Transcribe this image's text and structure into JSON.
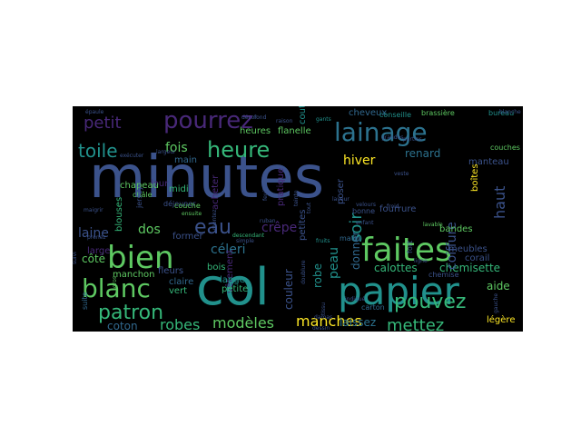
{
  "colors": {
    "background": "#000000",
    "palette": [
      "#440154",
      "#3b528b",
      "#21918c",
      "#5ec962",
      "#fde725",
      "#31688e",
      "#35b779",
      "#482878"
    ]
  },
  "words": [
    {
      "text": "minutes",
      "color": "#3b528b"
    },
    {
      "text": "col",
      "color": "#21918c"
    },
    {
      "text": "faites",
      "color": "#5ec962"
    },
    {
      "text": "papier",
      "color": "#21918c"
    },
    {
      "text": "lainage",
      "color": "#2c728e"
    },
    {
      "text": "pourrez",
      "color": "#482878"
    },
    {
      "text": "heure",
      "color": "#35b779"
    },
    {
      "text": "bien",
      "color": "#5ec962"
    },
    {
      "text": "blanc",
      "color": "#5ec962"
    },
    {
      "text": "patron",
      "color": "#35b779"
    },
    {
      "text": "eau",
      "color": "#3b528b"
    },
    {
      "text": "pouvez",
      "color": "#35b779"
    },
    {
      "text": "toile",
      "color": "#21918c"
    },
    {
      "text": "petit",
      "color": "#482878"
    },
    {
      "text": "soir",
      "color": "#21918c"
    },
    {
      "text": "mettez",
      "color": "#35b779"
    },
    {
      "text": "manches",
      "color": "#fde725"
    },
    {
      "text": "modèles",
      "color": "#5ec962"
    },
    {
      "text": "robes",
      "color": "#35b779"
    },
    {
      "text": "hiver",
      "color": "#fde725"
    },
    {
      "text": "fois",
      "color": "#5ec962"
    },
    {
      "text": "haut",
      "color": "#3b528b"
    },
    {
      "text": "laine",
      "color": "#3b528b"
    },
    {
      "text": "dos",
      "color": "#5ec962"
    },
    {
      "text": "crêpe",
      "color": "#482878"
    },
    {
      "text": "céleri",
      "color": "#2c728e"
    },
    {
      "text": "peau",
      "color": "#21918c"
    },
    {
      "text": "renard",
      "color": "#2c728e"
    },
    {
      "text": "coton",
      "color": "#31688e"
    },
    {
      "text": "côté",
      "color": "#5ec962"
    },
    {
      "text": "calottes",
      "color": "#35b779"
    },
    {
      "text": "chemisette",
      "color": "#35b779"
    },
    {
      "text": "coiffure",
      "color": "#3b528b"
    },
    {
      "text": "couleur",
      "color": "#3b528b"
    },
    {
      "text": "donner",
      "color": "#31688e"
    },
    {
      "text": "laissez",
      "color": "#2c728e"
    },
    {
      "text": "aide",
      "color": "#5ec962"
    },
    {
      "text": "manteau",
      "color": "#3b528b"
    },
    {
      "text": "fourrure",
      "color": "#3b528b"
    },
    {
      "text": "robe",
      "color": "#21918c"
    },
    {
      "text": "blouses",
      "color": "#35b779"
    },
    {
      "text": "flanelle",
      "color": "#5ec962"
    },
    {
      "text": "heures",
      "color": "#5ec962"
    },
    {
      "text": "vêtement",
      "color": "#482878"
    },
    {
      "text": "légère",
      "color": "#fde725"
    },
    {
      "text": "fleurs",
      "color": "#3b528b"
    },
    {
      "text": "manchon",
      "color": "#5ec962"
    },
    {
      "text": "fruits",
      "color": "#21918c"
    },
    {
      "text": "bois",
      "color": "#35b779"
    },
    {
      "text": "lange",
      "color": "#21918c"
    },
    {
      "text": "petite",
      "color": "#35b779"
    },
    {
      "text": "vert",
      "color": "#35b779"
    },
    {
      "text": "claire",
      "color": "#31688e"
    },
    {
      "text": "bandes",
      "color": "#5ec962"
    },
    {
      "text": "meubles",
      "color": "#3b528b"
    },
    {
      "text": "corail",
      "color": "#3b528b"
    },
    {
      "text": "cheveux",
      "color": "#31688e"
    },
    {
      "text": "brassière",
      "color": "#5ec962"
    },
    {
      "text": "bureau",
      "color": "#21918c"
    },
    {
      "text": "conseille",
      "color": "#21918c"
    },
    {
      "text": "couches",
      "color": "#5ec962"
    },
    {
      "text": "main",
      "color": "#31688e"
    },
    {
      "text": "midi",
      "color": "#35b779"
    },
    {
      "text": "jour",
      "color": "#482878"
    },
    {
      "text": "chapeau",
      "color": "#5ec962"
    },
    {
      "text": "large",
      "color": "#482878"
    },
    {
      "text": "suite",
      "color": "#31688e"
    },
    {
      "text": "acheter",
      "color": "#482878"
    },
    {
      "text": "pratique",
      "color": "#482878"
    },
    {
      "text": "petites",
      "color": "#3b528b"
    },
    {
      "text": "poser",
      "color": "#3b528b"
    },
    {
      "text": "bonne",
      "color": "#3b528b"
    },
    {
      "text": "matin",
      "color": "#31688e"
    },
    {
      "text": "former",
      "color": "#3b528b"
    },
    {
      "text": "chemise",
      "color": "#3b528b"
    },
    {
      "text": "enfant",
      "color": "#3b528b"
    },
    {
      "text": "couture",
      "color": "#21918c"
    },
    {
      "text": "boîtes",
      "color": "#fde725"
    },
    {
      "text": "carton",
      "color": "#31688e"
    },
    {
      "text": "dessin",
      "color": "#3b528b"
    },
    {
      "text": "damas",
      "color": "#3b528b"
    },
    {
      "text": "gants",
      "color": "#21918c"
    },
    {
      "text": "lavable",
      "color": "#5ec962"
    },
    {
      "text": "déjeuner",
      "color": "#3b528b"
    },
    {
      "text": "largeur",
      "color": "#3b528b"
    },
    {
      "text": "châle",
      "color": "#5ec962"
    },
    {
      "text": "couche",
      "color": "#5ec962"
    },
    {
      "text": "ensuite",
      "color": "#5ec962"
    },
    {
      "text": "jersey",
      "color": "#3b528b"
    },
    {
      "text": "montez",
      "color": "#3b528b"
    },
    {
      "text": "descendant",
      "color": "#35b779"
    },
    {
      "text": "fort",
      "color": "#3b528b"
    },
    {
      "text": "gros",
      "color": "#5ec962"
    },
    {
      "text": "ligne",
      "color": "#3b528b"
    },
    {
      "text": "feuilles",
      "color": "#3b528b"
    },
    {
      "text": "fond",
      "color": "#3b528b"
    },
    {
      "text": "décor",
      "color": "#3b528b"
    },
    {
      "text": "laveur",
      "color": "#3b528b"
    },
    {
      "text": "exécuter",
      "color": "#3b528b"
    },
    {
      "text": "grandes",
      "color": "#3b528b"
    },
    {
      "text": "froid",
      "color": "#3b528b"
    },
    {
      "text": "parties",
      "color": "#3b528b"
    },
    {
      "text": "doublure",
      "color": "#3b528b"
    },
    {
      "text": "gauche",
      "color": "#3b528b"
    },
    {
      "text": "simple",
      "color": "#3b528b"
    },
    {
      "text": "épaule",
      "color": "#3b528b"
    },
    {
      "text": "raison",
      "color": "#3b528b"
    },
    {
      "text": "teinte",
      "color": "#3b528b"
    },
    {
      "text": "tissu",
      "color": "#3b528b"
    },
    {
      "text": "tout",
      "color": "#3b528b"
    },
    {
      "text": "blanche",
      "color": "#3b528b"
    },
    {
      "text": "veste",
      "color": "#3b528b"
    },
    {
      "text": "maigrir",
      "color": "#3b528b"
    },
    {
      "text": "prenez",
      "color": "#3b528b"
    },
    {
      "text": "suivi",
      "color": "#3b528b"
    },
    {
      "text": "velours",
      "color": "#3b528b"
    },
    {
      "text": "ruban",
      "color": "#3b528b"
    },
    {
      "text": "indiqué",
      "color": "#3b528b"
    }
  ]
}
